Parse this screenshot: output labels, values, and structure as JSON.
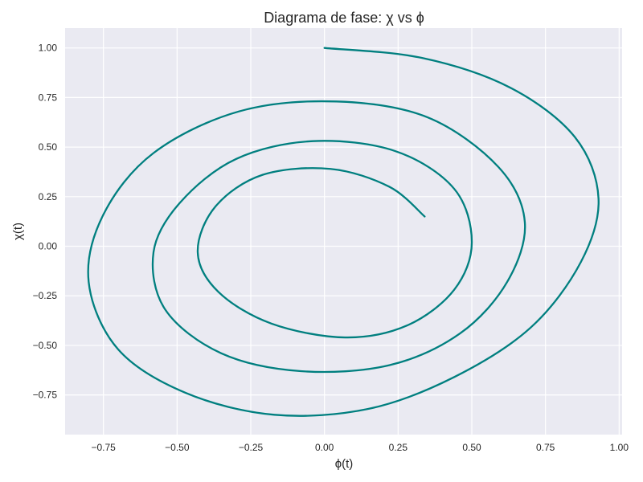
{
  "chart_data": {
    "type": "line",
    "title": "Diagrama de fase: χ vs ϕ",
    "xlabel": "ϕ(t)",
    "ylabel": "χ(t)",
    "xlim": [
      -0.88,
      1.01
    ],
    "ylim": [
      -0.95,
      1.1
    ],
    "xticks": [
      -0.75,
      -0.5,
      -0.25,
      0.0,
      0.25,
      0.5,
      0.75,
      1.0
    ],
    "xtick_labels": [
      "−0.75",
      "−0.50",
      "−0.25",
      "0.00",
      "0.25",
      "0.50",
      "0.75",
      "1.00"
    ],
    "yticks": [
      -0.75,
      -0.5,
      -0.25,
      0.0,
      0.25,
      0.5,
      0.75,
      1.0
    ],
    "ytick_labels": [
      "−0.75",
      "−0.50",
      "−0.25",
      "0.00",
      "0.25",
      "0.50",
      "0.75",
      "1.00"
    ],
    "grid": true,
    "legend": false,
    "colors": {
      "line": "#007f7f",
      "plot_background": "#eaeaf2",
      "grid": "#ffffff"
    },
    "series": [
      {
        "x": [
          0.0,
          0.33,
          0.63,
          0.85,
          0.93,
          0.87,
          0.7,
          0.44,
          0.15,
          -0.17,
          -0.47,
          -0.7,
          -0.8,
          -0.75,
          -0.58,
          -0.29,
          0.04,
          0.35,
          0.59,
          0.68,
          0.62,
          0.46,
          0.22,
          -0.08,
          -0.35,
          -0.54,
          -0.58,
          -0.49,
          -0.3,
          -0.04,
          0.24,
          0.44,
          0.5,
          0.44,
          0.28,
          0.07,
          -0.18,
          -0.36,
          -0.43,
          -0.37,
          -0.21,
          0.02,
          0.22,
          0.34
        ],
        "y": [
          1.0,
          0.95,
          0.8,
          0.55,
          0.24,
          -0.08,
          -0.41,
          -0.66,
          -0.82,
          -0.85,
          -0.74,
          -0.52,
          -0.18,
          0.16,
          0.47,
          0.68,
          0.73,
          0.65,
          0.4,
          0.12,
          -0.18,
          -0.44,
          -0.6,
          -0.63,
          -0.54,
          -0.32,
          -0.03,
          0.22,
          0.44,
          0.53,
          0.48,
          0.29,
          0.02,
          -0.22,
          -0.4,
          -0.46,
          -0.39,
          -0.23,
          -0.03,
          0.2,
          0.36,
          0.39,
          0.3,
          0.15
        ]
      }
    ]
  }
}
